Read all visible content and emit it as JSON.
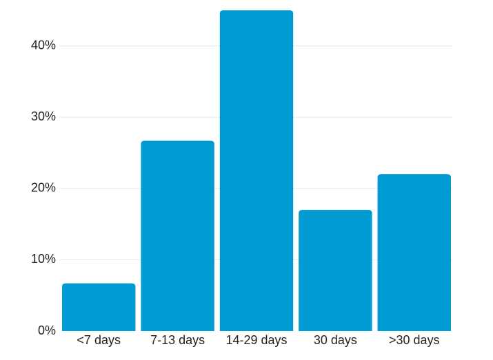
{
  "chart_data": {
    "type": "bar",
    "categories": [
      "<7 days",
      "7-13 days",
      "14-29 days",
      "30 days",
      ">30 days"
    ],
    "values": [
      6.7,
      26.7,
      45,
      17,
      22
    ],
    "color": "#009bd3",
    "ylim": [
      0,
      45
    ],
    "yticks": [
      {
        "value": 0,
        "label": "0%"
      },
      {
        "value": 10,
        "label": "10%"
      },
      {
        "value": 20,
        "label": "20%"
      },
      {
        "value": 30,
        "label": "30%"
      },
      {
        "value": 40,
        "label": "40%"
      }
    ],
    "grid": true
  }
}
